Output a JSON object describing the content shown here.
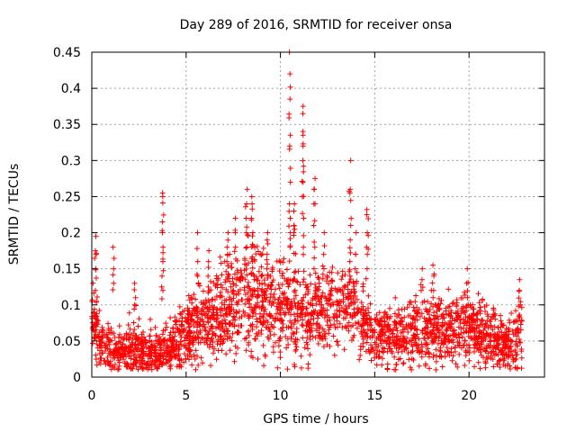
{
  "chart_data": {
    "type": "scatter",
    "title": "Day 289 of 2016, SRMTID for receiver onsa",
    "xlabel": "GPS time / hours",
    "ylabel": "SRMTID / TECUs",
    "xlim": [
      0,
      24
    ],
    "ylim": [
      0,
      0.45
    ],
    "xticks": [
      0,
      5,
      10,
      15,
      20
    ],
    "xtick_labels": [
      "0",
      "5",
      "10",
      "15",
      "20"
    ],
    "yticks": [
      0,
      0.05,
      0.1,
      0.15,
      0.2,
      0.25,
      0.3,
      0.35,
      0.4,
      0.45
    ],
    "ytick_labels": [
      "0",
      "0.05",
      "0.1",
      "0.15",
      "0.2",
      "0.25",
      "0.3",
      "0.35",
      "0.4",
      "0.45"
    ],
    "grid": true,
    "marker": "+",
    "color": "#ff0000",
    "series": [
      {
        "name": "SRMTID",
        "profile": {
          "hours": [
            0.0,
            0.5,
            1.0,
            2.0,
            3.0,
            4.0,
            5.0,
            6.0,
            7.0,
            8.0,
            9.0,
            10.0,
            11.0,
            12.0,
            13.0,
            14.0,
            15.0,
            16.0,
            17.0,
            18.0,
            19.0,
            20.0,
            21.0,
            22.0,
            22.8
          ],
          "baseline": [
            0.08,
            0.045,
            0.035,
            0.04,
            0.035,
            0.04,
            0.06,
            0.075,
            0.09,
            0.1,
            0.1,
            0.095,
            0.085,
            0.09,
            0.1,
            0.09,
            0.055,
            0.055,
            0.06,
            0.065,
            0.065,
            0.07,
            0.055,
            0.045,
            0.06
          ],
          "spread": [
            0.06,
            0.04,
            0.03,
            0.04,
            0.035,
            0.04,
            0.05,
            0.06,
            0.07,
            0.08,
            0.075,
            0.08,
            0.07,
            0.06,
            0.06,
            0.06,
            0.045,
            0.045,
            0.05,
            0.05,
            0.05,
            0.05,
            0.045,
            0.04,
            0.05
          ]
        },
        "spikes": [
          {
            "x": 0.2,
            "values": [
              0.12,
              0.15,
              0.17,
              0.175,
              0.195
            ]
          },
          {
            "x": 1.15,
            "values": [
              0.13,
              0.15,
              0.18
            ]
          },
          {
            "x": 2.3,
            "values": [
              0.1,
              0.11,
              0.13
            ]
          },
          {
            "x": 3.75,
            "values": [
              0.12,
              0.14,
              0.16,
              0.18,
              0.2,
              0.215,
              0.25,
              0.255
            ]
          },
          {
            "x": 5.6,
            "values": [
              0.14,
              0.16,
              0.2
            ]
          },
          {
            "x": 6.2,
            "values": [
              0.16,
              0.175
            ]
          },
          {
            "x": 7.2,
            "values": [
              0.16,
              0.17,
              0.18,
              0.2
            ]
          },
          {
            "x": 7.6,
            "values": [
              0.18,
              0.2,
              0.22
            ]
          },
          {
            "x": 8.2,
            "values": [
              0.18,
              0.2,
              0.22,
              0.24,
              0.26
            ]
          },
          {
            "x": 8.5,
            "values": [
              0.16,
              0.18,
              0.2,
              0.22,
              0.24,
              0.25
            ]
          },
          {
            "x": 9.3,
            "values": [
              0.15,
              0.17,
              0.19,
              0.2
            ]
          },
          {
            "x": 10.5,
            "values": [
              0.18,
              0.2,
              0.22,
              0.24,
              0.27,
              0.32,
              0.335,
              0.385,
              0.42,
              0.45
            ]
          },
          {
            "x": 10.75,
            "values": [
              0.2,
              0.21,
              0.23,
              0.24
            ]
          },
          {
            "x": 11.2,
            "values": [
              0.18,
              0.22,
              0.25,
              0.27,
              0.3,
              0.32,
              0.335,
              0.365,
              0.375
            ]
          },
          {
            "x": 11.8,
            "values": [
              0.15,
              0.18,
              0.21,
              0.24,
              0.26,
              0.275
            ]
          },
          {
            "x": 12.3,
            "values": [
              0.15,
              0.17,
              0.2
            ]
          },
          {
            "x": 13.7,
            "values": [
              0.14,
              0.16,
              0.19,
              0.21,
              0.255,
              0.26,
              0.3
            ]
          },
          {
            "x": 14.0,
            "values": [
              0.13,
              0.15,
              0.17,
              0.2
            ]
          },
          {
            "x": 14.6,
            "values": [
              0.15,
              0.18,
              0.2,
              0.225,
              0.232
            ]
          },
          {
            "x": 17.5,
            "values": [
              0.12,
              0.135,
              0.15
            ]
          },
          {
            "x": 18.1,
            "values": [
              0.12,
              0.14,
              0.155
            ]
          },
          {
            "x": 19.9,
            "values": [
              0.11,
              0.13,
              0.15
            ]
          },
          {
            "x": 22.7,
            "values": [
              0.1,
              0.12,
              0.135
            ]
          }
        ]
      }
    ]
  }
}
